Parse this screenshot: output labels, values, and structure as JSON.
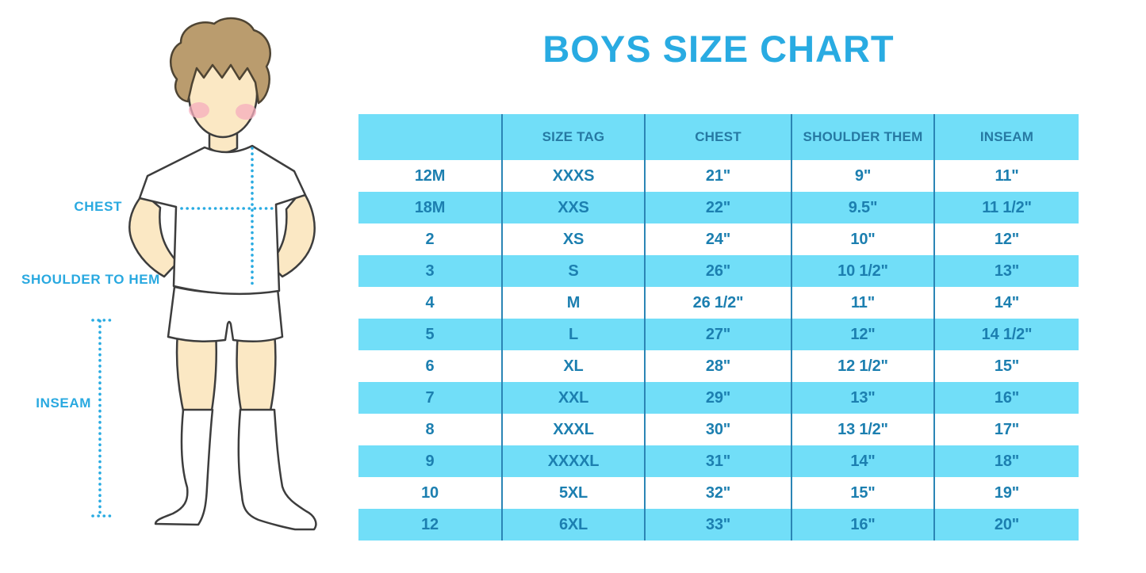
{
  "title": "BOYS SIZE CHART",
  "figure": {
    "chest_label": "CHEST",
    "shoulder_to_hem_label": "SHOULDER TO HEM",
    "inseam_label": "INSEAM"
  },
  "chart_data": {
    "type": "table",
    "title": "BOYS SIZE CHART",
    "columns": [
      "",
      "SIZE TAG",
      "CHEST",
      "SHOULDER THEM",
      "INSEAM"
    ],
    "rows": [
      [
        "12M",
        "XXXS",
        "21\"",
        "9\"",
        "11\""
      ],
      [
        "18M",
        "XXS",
        "22\"",
        "9.5\"",
        "11 1/2\""
      ],
      [
        "2",
        "XS",
        "24\"",
        "10\"",
        "12\""
      ],
      [
        "3",
        "S",
        "26\"",
        "10 1/2\"",
        "13\""
      ],
      [
        "4",
        "M",
        "26 1/2\"",
        "11\"",
        "14\""
      ],
      [
        "5",
        "L",
        "27\"",
        "12\"",
        "14 1/2\""
      ],
      [
        "6",
        "XL",
        "28\"",
        "12 1/2\"",
        "15\""
      ],
      [
        "7",
        "XXL",
        "29\"",
        "13\"",
        "16\""
      ],
      [
        "8",
        "XXXL",
        "30\"",
        "13 1/2\"",
        "17\""
      ],
      [
        "9",
        "XXXXL",
        "31\"",
        "14\"",
        "18\""
      ],
      [
        "10",
        "5XL",
        "32\"",
        "15\"",
        "19\""
      ],
      [
        "12",
        "6XL",
        "33\"",
        "16\"",
        "20\""
      ]
    ],
    "layout": {
      "stripe_pattern": "white/cyan alternating, header cyan",
      "grid": "vertical dividers only"
    }
  },
  "colors": {
    "accent_blue": "#29ABE2",
    "row_cyan": "#71DEF8",
    "cell_text_blue": "#1C7FB0",
    "header_text_blue": "#2679A3",
    "divider_blue": "#2B85B5",
    "skin": "#FBE8C4",
    "hair_brown": "#BA9C6E",
    "blush_pink": "#F5AEBE"
  }
}
